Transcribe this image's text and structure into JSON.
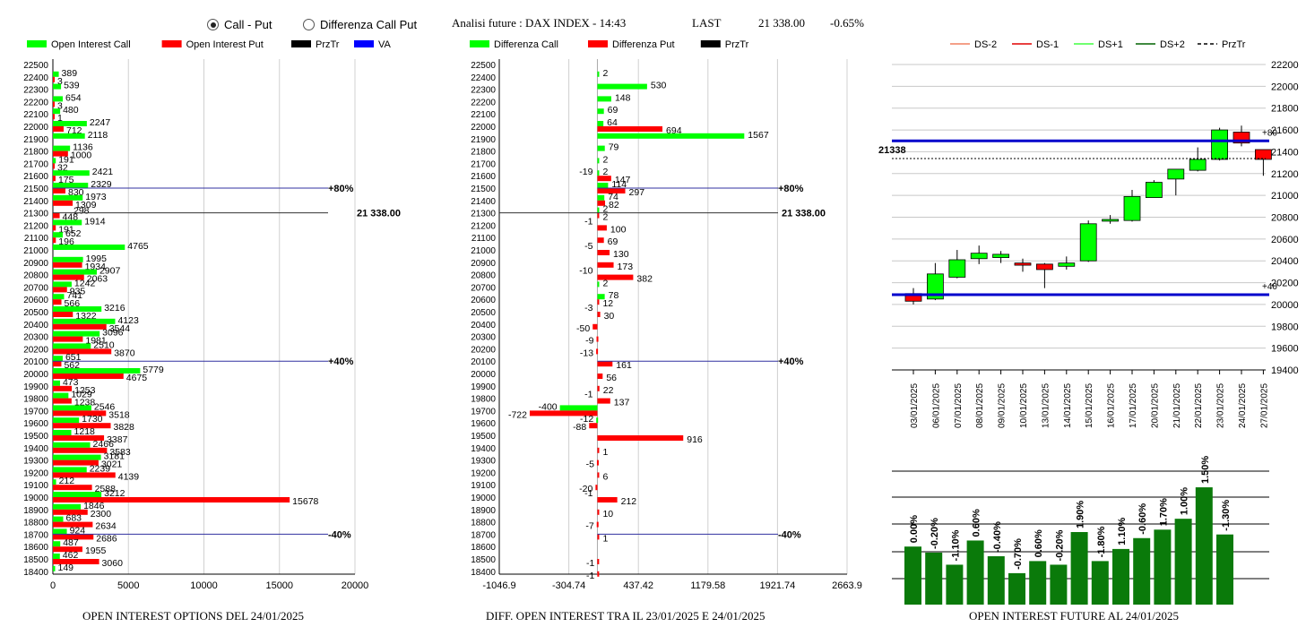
{
  "header": {
    "radio_call_put": "Call - Put",
    "radio_diff": "Differenza Call Put",
    "radio_selected": "call_put",
    "analysis_title": "Analisi future : DAX INDEX - 14:43",
    "last_label": "LAST",
    "last_value": "21 338.00",
    "last_change": "-0.65%"
  },
  "colors": {
    "call": "#00ff00",
    "put": "#ff0000",
    "prztr": "#000000",
    "va": "#0000ff",
    "gain_bar": "#008000",
    "dark_green": "#006400"
  },
  "chart_data": [
    {
      "id": "open_interest",
      "type": "bar",
      "orientation": "horizontal",
      "title": "OPEN INTEREST OPTIONS DEL 24/01/2025",
      "legend": [
        "Open Interest Call",
        "Open Interest Put",
        "PrzTr",
        "VA"
      ],
      "strikes": [
        22500,
        22400,
        22300,
        22200,
        22100,
        22000,
        21900,
        21800,
        21700,
        21600,
        21500,
        21400,
        21300,
        21200,
        21100,
        21000,
        20900,
        20800,
        20700,
        20600,
        20500,
        20400,
        20300,
        20200,
        20100,
        20000,
        19900,
        19800,
        19700,
        19600,
        19500,
        19400,
        19300,
        19200,
        19100,
        19000,
        18900,
        18800,
        18700,
        18600,
        18500,
        18400
      ],
      "call": [
        null,
        389,
        539,
        654,
        480,
        2247,
        2118,
        1136,
        191,
        2421,
        2329,
        1973,
        null,
        1914,
        652,
        4765,
        1995,
        2907,
        1242,
        741,
        3216,
        4123,
        3096,
        2510,
        651,
        5779,
        473,
        1029,
        2546,
        1730,
        1218,
        2466,
        3181,
        2239,
        212,
        3212,
        1846,
        683,
        924,
        487,
        462,
        149
      ],
      "put": [
        null,
        3,
        null,
        3,
        1,
        712,
        null,
        1000,
        32,
        175,
        830,
        1309,
        448,
        191,
        196,
        null,
        1934,
        2063,
        935,
        566,
        1322,
        3544,
        1981,
        3870,
        562,
        4675,
        1253,
        1238,
        3518,
        3828,
        3387,
        3583,
        3021,
        4139,
        2588,
        15678,
        2300,
        2634,
        2686,
        1955,
        3060,
        null
      ],
      "overlay_298": 298,
      "xlim": [
        0,
        20000
      ],
      "xticks": [
        0,
        5000,
        10000,
        15000,
        20000
      ],
      "markers": [
        {
          "strike": 21500,
          "label": "+80%",
          "color": "blue"
        },
        {
          "strike": 21300,
          "label": "21 338.00",
          "color": "black"
        },
        {
          "strike": 20100,
          "label": "+40%",
          "color": "blue"
        },
        {
          "strike": 18700,
          "label": "-40%",
          "color": "blue"
        }
      ]
    },
    {
      "id": "diff_open_interest",
      "type": "bar",
      "orientation": "horizontal",
      "title": "DIFF. OPEN INTEREST TRA IL 23/01/2025 E 24/01/2025",
      "legend": [
        "Differenza Call",
        "Differenza Put",
        "PrzTr"
      ],
      "strikes": [
        22500,
        22400,
        22300,
        22200,
        22100,
        22000,
        21900,
        21800,
        21700,
        21600,
        21500,
        21400,
        21300,
        21200,
        21100,
        21000,
        20900,
        20800,
        20700,
        20600,
        20500,
        20400,
        20300,
        20200,
        20100,
        20000,
        19900,
        19800,
        19700,
        19600,
        19500,
        19400,
        19300,
        19200,
        19100,
        19000,
        18900,
        18800,
        18700,
        18600,
        18500,
        18400
      ],
      "call": [
        null,
        2,
        530,
        148,
        69,
        64,
        1567,
        79,
        2,
        2,
        114,
        74,
        2,
        null,
        null,
        null,
        null,
        null,
        2,
        78,
        null,
        null,
        null,
        null,
        null,
        null,
        null,
        null,
        -400,
        -12,
        null,
        null,
        null,
        null,
        null,
        null,
        null,
        null,
        null,
        null,
        null,
        null
      ],
      "put": [
        null,
        null,
        null,
        null,
        null,
        694,
        null,
        null,
        null,
        147,
        297,
        82,
        2,
        100,
        69,
        130,
        173,
        382,
        null,
        12,
        30,
        -50,
        -9,
        -13,
        161,
        56,
        22,
        137,
        -722,
        -88,
        916,
        1,
        -5,
        6,
        -20,
        212,
        10,
        -7,
        1,
        null,
        -1,
        -1
      ],
      "extra_labels": [
        {
          "strike": 21600,
          "value": "-19"
        },
        {
          "strike": 21200,
          "value": "-1"
        },
        {
          "strike": 21000,
          "value": "-5"
        },
        {
          "strike": 20800,
          "value": "-10"
        },
        {
          "strike": 20500,
          "value": "-3"
        },
        {
          "strike": 19800,
          "value": "-1"
        },
        {
          "strike": 19000,
          "value": "-1"
        }
      ],
      "xlim": [
        -1046.9,
        2663.9
      ],
      "xticks": [
        "-1046.9",
        "-304.74",
        "437.42",
        "1179.58",
        "1921.74",
        "2663.9"
      ],
      "markers": [
        {
          "strike": 21500,
          "label": "+80%",
          "color": "blue"
        },
        {
          "strike": 21300,
          "label": "21 338.00",
          "color": "black"
        },
        {
          "strike": 20100,
          "label": "+40%",
          "color": "blue"
        },
        {
          "strike": 18700,
          "label": "-40%",
          "color": "blue"
        }
      ]
    },
    {
      "id": "candles",
      "type": "candlestick",
      "legend": [
        "DS-2",
        "DS-1",
        "DS+1",
        "DS+2",
        "PrzTr"
      ],
      "dates": [
        "03/01/2025",
        "06/01/2025",
        "07/01/2025",
        "08/01/2025",
        "09/01/2025",
        "10/01/2025",
        "13/01/2025",
        "14/01/2025",
        "15/01/2025",
        "16/01/2025",
        "17/01/2025",
        "20/01/2025",
        "21/01/2025",
        "22/01/2025",
        "23/01/2025",
        "24/01/2025",
        "27/01/2025"
      ],
      "open": [
        20100,
        20050,
        20250,
        20420,
        20430,
        20380,
        20370,
        20350,
        20400,
        20770,
        20770,
        20980,
        21150,
        21230,
        21330,
        21580,
        21420
      ],
      "close": [
        20030,
        20280,
        20410,
        20470,
        20460,
        20360,
        20320,
        20380,
        20740,
        20780,
        20990,
        21120,
        21240,
        21330,
        21600,
        21480,
        21330
      ],
      "high": [
        20150,
        20380,
        20500,
        20540,
        20490,
        20420,
        20380,
        20440,
        20770,
        20820,
        21050,
        21140,
        21240,
        21440,
        21620,
        21640,
        21400
      ],
      "low": [
        20000,
        20040,
        20240,
        20370,
        20380,
        20300,
        20150,
        20320,
        20390,
        20740,
        20760,
        20980,
        21000,
        21220,
        21320,
        21450,
        21180
      ],
      "ylim": [
        19400,
        22200
      ],
      "yticks": [
        19400,
        19600,
        19800,
        20000,
        20200,
        20400,
        20600,
        20800,
        21000,
        21200,
        21400,
        21600,
        21800,
        22000,
        22200
      ],
      "line_levels": [
        {
          "value": 21500,
          "label": "+80"
        },
        {
          "value": 20090,
          "label": "+40"
        }
      ],
      "prztr_value": 21338,
      "prztr_label": "21338"
    },
    {
      "id": "future_oi",
      "type": "bar",
      "title": "OPEN INTEREST FUTURE AL 24/01/2025",
      "labels": [
        "0.00%",
        "-0.20%",
        "-1.10%",
        "0.60%",
        "-0.40%",
        "-0.70%",
        "0.60%",
        "-0.20%",
        "1.90%",
        "-1.80%",
        "1.10%",
        "-0.60%",
        "1.70%",
        "1.00%",
        "1.50%",
        "-1.30%"
      ],
      "heights": [
        0.48,
        0.43,
        0.33,
        0.53,
        0.4,
        0.26,
        0.36,
        0.33,
        0.6,
        0.36,
        0.46,
        0.55,
        0.62,
        0.71,
        0.97,
        0.58
      ]
    }
  ]
}
